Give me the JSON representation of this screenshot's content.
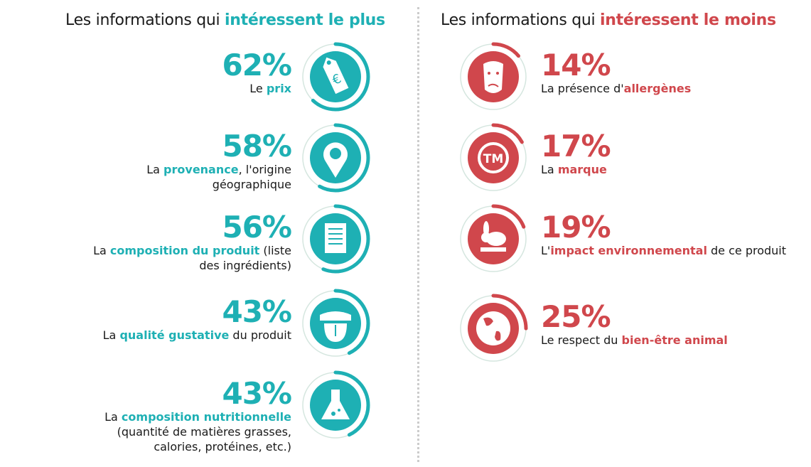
{
  "left": {
    "title_pre": "Les informations qui ",
    "title_hl": "intéressent le plus",
    "color": "#1eb0b4",
    "items": [
      {
        "pct": "62%",
        "value": 62,
        "icon": "price-tag-euro-icon",
        "pre": "Le ",
        "hl": "prix",
        "post": ""
      },
      {
        "pct": "58%",
        "value": 58,
        "icon": "location-pin-icon",
        "pre": "La ",
        "hl": "provenance",
        "post": ", l'origine géographique"
      },
      {
        "pct": "56%",
        "value": 56,
        "icon": "document-list-icon",
        "pre": "La ",
        "hl": "composition du produit",
        "post": " (liste des ingrédients)"
      },
      {
        "pct": "43%",
        "value": 43,
        "icon": "tongue-mouth-icon",
        "pre": "La ",
        "hl": "qualité gustative",
        "post": " du produit"
      },
      {
        "pct": "43%",
        "value": 43,
        "icon": "flask-icon",
        "pre": "La ",
        "hl": "composition nutritionnelle",
        "post": " (quantité de matières grasses, calories, protéines, etc.)"
      }
    ]
  },
  "right": {
    "title_pre": "Les informations qui ",
    "title_hl": "intéressent le moins",
    "color": "#d0474c",
    "items": [
      {
        "pct": "14%",
        "value": 14,
        "icon": "allergy-face-icon",
        "pre": "La présence d'",
        "hl": "allergènes",
        "post": ""
      },
      {
        "pct": "17%",
        "value": 17,
        "icon": "trademark-icon",
        "pre": "La ",
        "hl": "marque",
        "post": ""
      },
      {
        "pct": "19%",
        "value": 19,
        "icon": "rabbit-brush-icon",
        "pre": "L'",
        "hl": "impact environnemental",
        "post": " de ce produit"
      },
      {
        "pct": "25%",
        "value": 25,
        "icon": "globe-icon",
        "pre": "Le respect du ",
        "hl": "bien-être animal",
        "post": ""
      }
    ]
  }
}
